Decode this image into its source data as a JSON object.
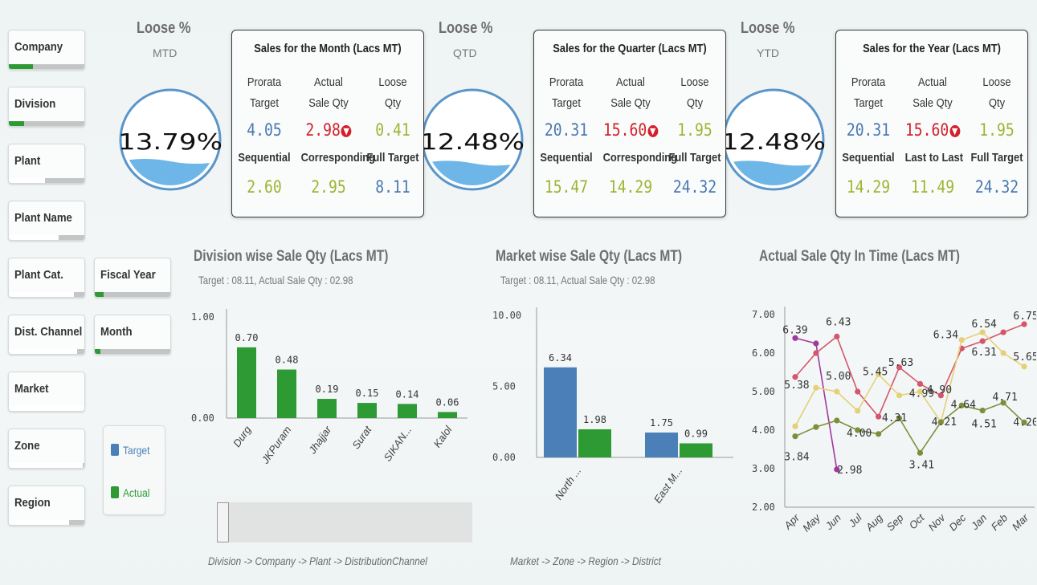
{
  "filters": [
    {
      "id": "company",
      "label": "Company",
      "fill": 0.32,
      "light": false
    },
    {
      "id": "division",
      "label": "Division",
      "fill": 0.2,
      "light": false
    },
    {
      "id": "plant",
      "label": "Plant",
      "fill": 0.48,
      "light": true
    },
    {
      "id": "plant-name",
      "label": "Plant Name",
      "fill": 0.66,
      "light": true
    },
    {
      "id": "plant-cat",
      "label": "Plant Cat.",
      "fill": 0.86,
      "light": true
    },
    {
      "id": "dist-channel",
      "label": "Dist. Channel",
      "fill": 0.9,
      "light": true
    },
    {
      "id": "market",
      "label": "Market",
      "fill": 1.0,
      "light": true
    },
    {
      "id": "zone",
      "label": "Zone",
      "fill": 0.98,
      "light": true
    },
    {
      "id": "region",
      "label": "Region",
      "fill": 0.8,
      "light": true
    },
    {
      "id": "fiscal-year",
      "label": "Fiscal Year",
      "fill": 0.12,
      "light": false
    },
    {
      "id": "month",
      "label": "Month",
      "fill": 0.07,
      "light": false
    }
  ],
  "gauges": [
    {
      "title": "Loose %",
      "period": "MTD",
      "value": "13.79%",
      "level": 0.14
    },
    {
      "title": "Loose %",
      "period": "QTD",
      "value": "12.48%",
      "level": 0.12
    },
    {
      "title": "Loose %",
      "period": "YTD",
      "value": "12.48%",
      "level": 0.12
    }
  ],
  "cards": [
    {
      "title": "Sales for the Month (Lacs MT)",
      "h1": [
        "Prorata",
        "Target"
      ],
      "h2": [
        "Actual",
        "Sale Qty"
      ],
      "h3": [
        "Loose",
        "Qty"
      ],
      "v1": "4.05",
      "v2": "2.98",
      "v3": "0.41",
      "l1": "Sequential",
      "l2": "Corresponding",
      "l3": "Full Target",
      "w1": "2.60",
      "w2": "2.95",
      "w3": "8.11"
    },
    {
      "title": "Sales for the Quarter (Lacs MT)",
      "h1": [
        "Prorata",
        "Target"
      ],
      "h2": [
        "Actual",
        "Sale Qty"
      ],
      "h3": [
        "Loose",
        "Qty"
      ],
      "v1": "20.31",
      "v2": "15.60",
      "v3": "1.95",
      "l1": "Sequential",
      "l2": "Corresponding",
      "l3": "Full Target",
      "w1": "15.47",
      "w2": "14.29",
      "w3": "24.32"
    },
    {
      "title": "Sales for the Year (Lacs MT)",
      "h1": [
        "Prorata",
        "Target"
      ],
      "h2": [
        "Actual",
        "Sale Qty"
      ],
      "h3": [
        "Loose",
        "Qty"
      ],
      "v1": "20.31",
      "v2": "15.60",
      "v3": "1.95",
      "l1": "Sequential",
      "l2": "Last to Last",
      "l3": "Full Target",
      "w1": "14.29",
      "w2": "11.49",
      "w3": "24.32"
    }
  ],
  "division_chart": {
    "title": "Division wise Sale Qty (Lacs MT)",
    "subtitle": "Target : 08.11, Actual Sale Qty : 02.98",
    "drill": "Division -> Company -> Plant -> DistributionChannel",
    "chart_data": {
      "type": "bar",
      "categories": [
        "Durg",
        "JKPuram",
        "Jhajjar",
        "Surat",
        "SIKAN...",
        "Kalol"
      ],
      "series": [
        {
          "name": "Actual",
          "values": [
            0.7,
            0.48,
            0.19,
            0.15,
            0.14,
            0.06
          ]
        }
      ],
      "value_labels": [
        "0.70",
        "0.48",
        "0.19",
        "0.15",
        "0.14",
        "0.06"
      ],
      "yticks": [
        "1.00",
        "0.00"
      ],
      "ylim": [
        0,
        1
      ]
    }
  },
  "market_chart": {
    "title": "Market wise Sale Qty (Lacs MT)",
    "subtitle": "Target : 08.11, Actual Sale Qty : 02.98",
    "drill": "Market -> Zone -> Region -> District",
    "chart_data": {
      "type": "bar",
      "categories": [
        "North ...",
        "East M..."
      ],
      "series": [
        {
          "name": "Target",
          "values": [
            6.34,
            1.75
          ]
        },
        {
          "name": "Actual",
          "values": [
            1.98,
            0.99
          ]
        }
      ],
      "value_labels": [
        [
          "6.34",
          "1.75"
        ],
        [
          "1.98",
          "0.99"
        ]
      ],
      "yticks": [
        "10.00",
        "5.00",
        "0.00"
      ],
      "ylim": [
        0,
        10
      ]
    }
  },
  "time_chart": {
    "title": "Actual Sale Qty In Time (Lacs MT)",
    "chart_data": {
      "type": "line",
      "categories": [
        "Apr",
        "May",
        "Jun",
        "Jul",
        "Aug",
        "Sep",
        "Oct",
        "Nov",
        "Dec",
        "Jan",
        "Feb",
        "Mar"
      ],
      "yticks": [
        "7.00",
        "6.00",
        "5.00",
        "4.00",
        "3.00",
        "2.00"
      ],
      "ylim": [
        2,
        7
      ],
      "series": [
        {
          "color": "#a0389e",
          "values": [
            6.39,
            6.25,
            2.98,
            null,
            null,
            null,
            null,
            null,
            null,
            null,
            null,
            null
          ]
        },
        {
          "color": "#d4566c",
          "values": [
            5.38,
            6.0,
            6.43,
            5.0,
            4.35,
            5.63,
            5.2,
            4.9,
            6.12,
            6.31,
            6.54,
            6.75
          ]
        },
        {
          "color": "#e6cf78",
          "values": [
            4.1,
            5.1,
            5.0,
            4.5,
            5.45,
            4.9,
            5.0,
            4.21,
            6.34,
            6.54,
            6.0,
            5.65
          ]
        },
        {
          "color": "#7e8f3a",
          "values": [
            3.84,
            4.08,
            4.25,
            4.0,
            3.9,
            4.31,
            3.41,
            4.21,
            4.64,
            4.51,
            4.71,
            4.2
          ]
        }
      ],
      "labels": [
        "6.39",
        "6.43",
        "5.00",
        "5.45",
        "5.63",
        "6.34",
        "6.54",
        "6.75",
        "5.38",
        "4.90",
        "6.31",
        "5.65",
        "4.99",
        "4.64",
        "4.71",
        "3.84",
        "4.00",
        "4.31",
        "4.21",
        "4.51",
        "4.20",
        "2.98",
        "3.41"
      ]
    }
  },
  "legend": {
    "target": "Target",
    "actual": "Actual",
    "target_color": "#4a7fb8",
    "actual_color": "#2d9a34"
  },
  "colors": {
    "target": "#4a7fb8",
    "actual": "#2d9a34",
    "gauge_fill": "#6fb6e8",
    "gauge_ring": "#5a95c9"
  }
}
